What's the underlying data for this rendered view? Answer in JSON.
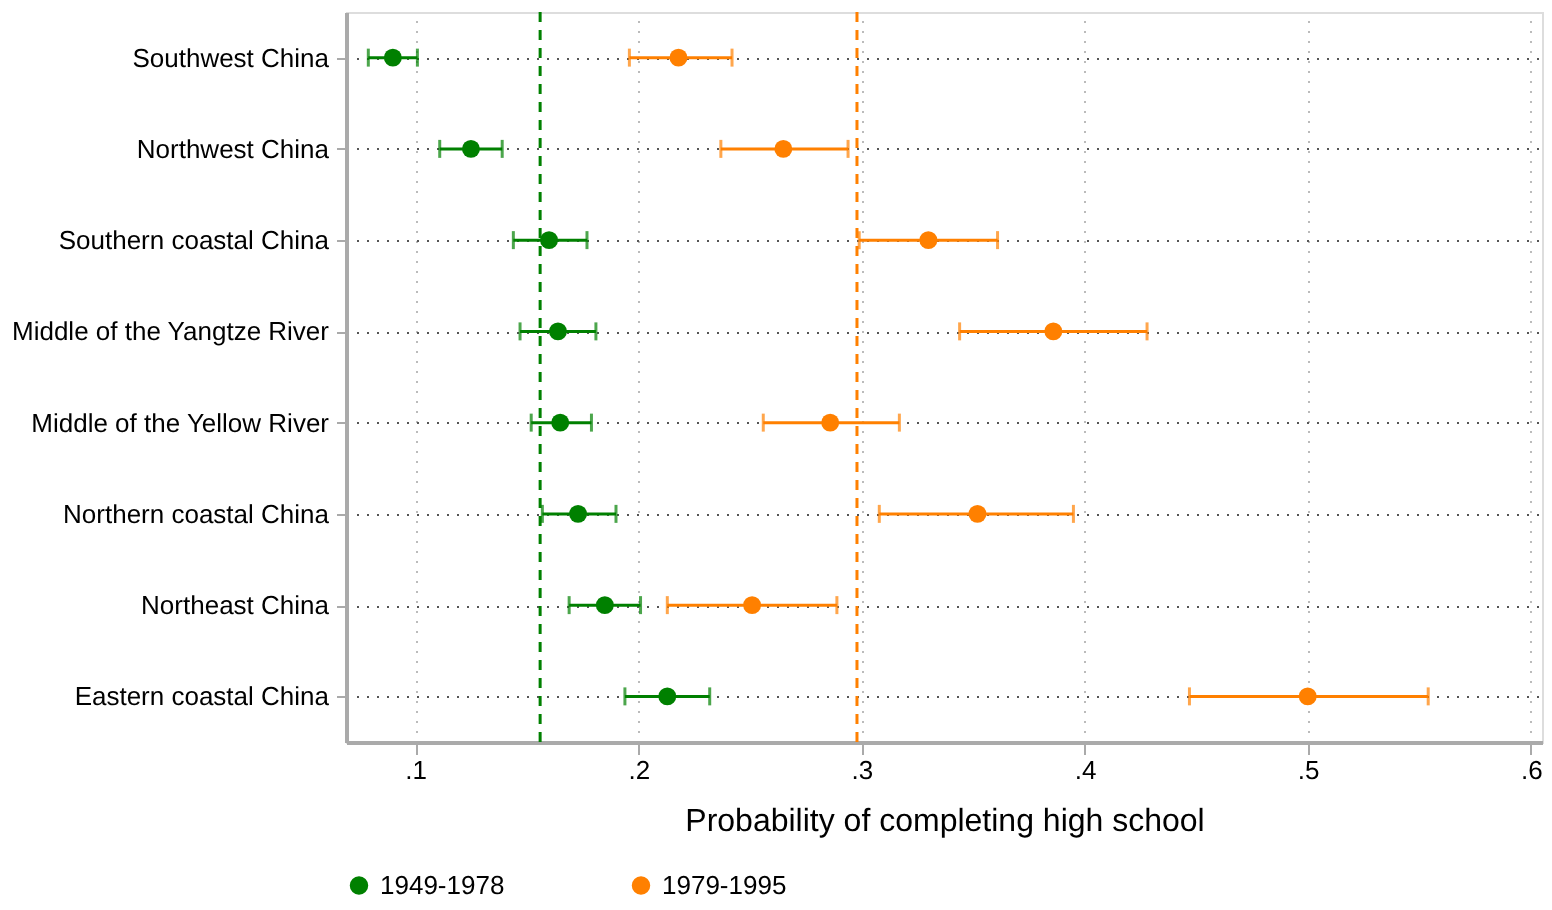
{
  "chart_data": {
    "type": "scatter",
    "orientation": "horizontal",
    "xlabel": "Probability of completing high school",
    "categories": [
      "Southwest China",
      "Northwest China",
      "Southern coastal China",
      "Middle of the Yangtze River",
      "Middle of the Yellow River",
      "Northern coastal China",
      "Northeast China",
      "Eastern coastal China"
    ],
    "series": [
      {
        "name": "1949-1978",
        "color": "#008000",
        "values": [
          0.09,
          0.125,
          0.16,
          0.164,
          0.165,
          0.173,
          0.185,
          0.213
        ],
        "errors": [
          [
            0.079,
            0.101
          ],
          [
            0.111,
            0.139
          ],
          [
            0.144,
            0.177
          ],
          [
            0.147,
            0.181
          ],
          [
            0.152,
            0.179
          ],
          [
            0.157,
            0.19
          ],
          [
            0.169,
            0.201
          ],
          [
            0.194,
            0.232
          ]
        ]
      },
      {
        "name": "1979-1995",
        "color": "#ff8000",
        "values": [
          0.218,
          0.265,
          0.33,
          0.386,
          0.286,
          0.352,
          0.251,
          0.5
        ],
        "errors": [
          [
            0.196,
            0.242
          ],
          [
            0.237,
            0.294
          ],
          [
            0.299,
            0.361
          ],
          [
            0.344,
            0.428
          ],
          [
            0.256,
            0.317
          ],
          [
            0.308,
            0.395
          ],
          [
            0.213,
            0.289
          ],
          [
            0.447,
            0.554
          ]
        ]
      }
    ],
    "ref_lines": [
      {
        "axis": "x",
        "value": 0.156,
        "color": "#008000",
        "line_style": "dashed"
      },
      {
        "axis": "x",
        "value": 0.298,
        "color": "#ff8000",
        "line_style": "dashed"
      }
    ],
    "xlim": [
      0.069,
      0.605
    ],
    "xticks": [
      {
        "value": 0.1,
        "label": ".1"
      },
      {
        "value": 0.2,
        "label": ".2"
      },
      {
        "value": 0.3,
        "label": ".3"
      },
      {
        "value": 0.4,
        "label": ".4"
      },
      {
        "value": 0.5,
        "label": ".5"
      },
      {
        "value": 0.6,
        "label": ".6"
      }
    ],
    "grid": true,
    "legend": "bottom",
    "marker": "circle"
  }
}
